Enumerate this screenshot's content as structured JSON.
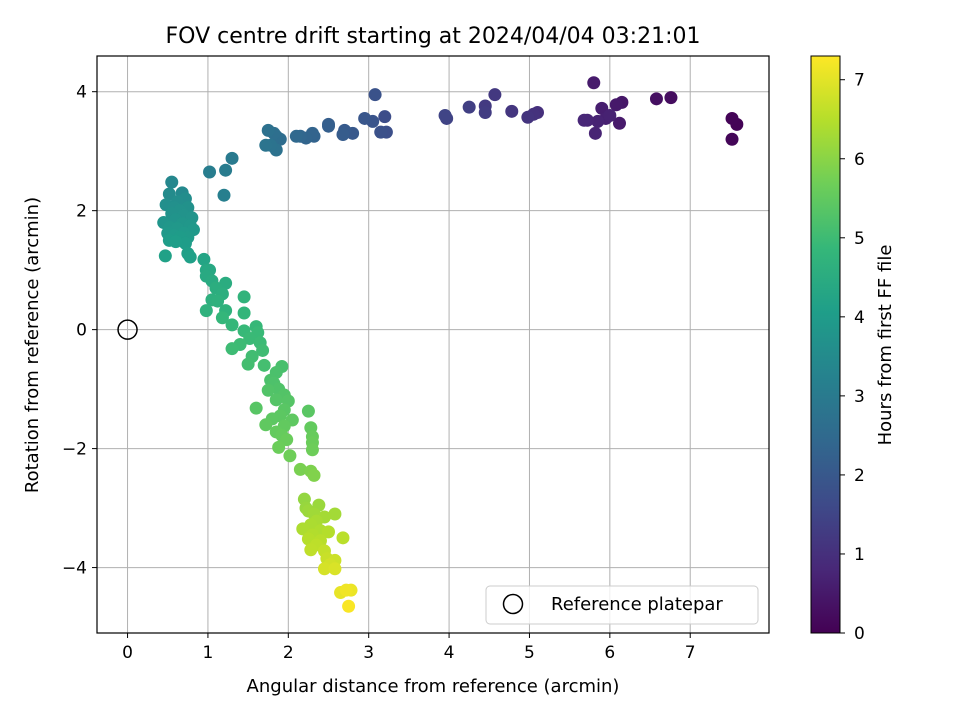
{
  "chart_data": {
    "type": "scatter",
    "title": "FOV centre drift starting at 2024/04/04 03:21:01",
    "xlabel": "Angular distance from reference (arcmin)",
    "ylabel": "Rotation from reference (arcmin)",
    "xlim": [
      -0.38,
      7.98
    ],
    "ylim": [
      -5.1,
      4.6
    ],
    "xticks": [
      0,
      1,
      2,
      3,
      4,
      5,
      6,
      7
    ],
    "yticks": [
      -4,
      -2,
      0,
      2,
      4
    ],
    "xtick_labels": [
      "0",
      "1",
      "2",
      "3",
      "4",
      "5",
      "6",
      "7"
    ],
    "ytick_labels": [
      "−4",
      "−2",
      "0",
      "2",
      "4"
    ],
    "grid": true,
    "colormap": "viridis",
    "colorbar": {
      "label": "Hours from first FF file",
      "range": [
        0,
        7.3
      ],
      "ticks": [
        0,
        1,
        2,
        3,
        4,
        5,
        6,
        7
      ],
      "tick_labels": [
        "0",
        "1",
        "2",
        "3",
        "4",
        "5",
        "6",
        "7"
      ]
    },
    "legend": {
      "label": "Reference platepar",
      "position": "lower-right"
    },
    "reference_point": {
      "x": 0,
      "y": 0,
      "marker": "open-circle"
    },
    "points": [
      {
        "x": 7.58,
        "y": 3.45,
        "t": 0.05
      },
      {
        "x": 7.52,
        "y": 3.55,
        "t": 0.07
      },
      {
        "x": 7.52,
        "y": 3.2,
        "t": 0.1
      },
      {
        "x": 6.76,
        "y": 3.9,
        "t": 0.25
      },
      {
        "x": 6.58,
        "y": 3.88,
        "t": 0.3
      },
      {
        "x": 6.15,
        "y": 3.82,
        "t": 0.45
      },
      {
        "x": 6.08,
        "y": 3.78,
        "t": 0.5
      },
      {
        "x": 6.12,
        "y": 3.47,
        "t": 0.52
      },
      {
        "x": 5.8,
        "y": 4.15,
        "t": 0.55
      },
      {
        "x": 5.9,
        "y": 3.72,
        "t": 0.6
      },
      {
        "x": 5.95,
        "y": 3.55,
        "t": 0.65
      },
      {
        "x": 6.0,
        "y": 3.6,
        "t": 0.68
      },
      {
        "x": 5.85,
        "y": 3.5,
        "t": 0.7
      },
      {
        "x": 5.82,
        "y": 3.3,
        "t": 0.72
      },
      {
        "x": 5.72,
        "y": 3.52,
        "t": 0.75
      },
      {
        "x": 5.68,
        "y": 3.52,
        "t": 0.78
      },
      {
        "x": 5.1,
        "y": 3.65,
        "t": 1.0
      },
      {
        "x": 5.05,
        "y": 3.62,
        "t": 1.05
      },
      {
        "x": 4.98,
        "y": 3.57,
        "t": 1.1
      },
      {
        "x": 4.78,
        "y": 3.67,
        "t": 1.15
      },
      {
        "x": 4.57,
        "y": 3.95,
        "t": 1.2
      },
      {
        "x": 4.45,
        "y": 3.76,
        "t": 1.25
      },
      {
        "x": 4.45,
        "y": 3.65,
        "t": 1.3
      },
      {
        "x": 4.25,
        "y": 3.74,
        "t": 1.35
      },
      {
        "x": 3.97,
        "y": 3.55,
        "t": 1.45
      },
      {
        "x": 3.95,
        "y": 3.6,
        "t": 1.5
      },
      {
        "x": 3.2,
        "y": 3.58,
        "t": 1.7
      },
      {
        "x": 3.22,
        "y": 3.32,
        "t": 1.75
      },
      {
        "x": 3.15,
        "y": 3.32,
        "t": 1.8
      },
      {
        "x": 3.08,
        "y": 3.95,
        "t": 1.85
      },
      {
        "x": 3.05,
        "y": 3.5,
        "t": 1.9
      },
      {
        "x": 2.95,
        "y": 3.55,
        "t": 1.95
      },
      {
        "x": 2.8,
        "y": 3.3,
        "t": 2.0
      },
      {
        "x": 2.7,
        "y": 3.35,
        "t": 2.05
      },
      {
        "x": 2.68,
        "y": 3.28,
        "t": 2.1
      },
      {
        "x": 2.5,
        "y": 3.45,
        "t": 2.15
      },
      {
        "x": 2.5,
        "y": 3.42,
        "t": 2.2
      },
      {
        "x": 2.32,
        "y": 3.25,
        "t": 2.3
      },
      {
        "x": 2.3,
        "y": 3.3,
        "t": 2.32
      },
      {
        "x": 2.22,
        "y": 3.22,
        "t": 2.35
      },
      {
        "x": 2.15,
        "y": 3.25,
        "t": 2.4
      },
      {
        "x": 2.1,
        "y": 3.25,
        "t": 2.45
      },
      {
        "x": 1.9,
        "y": 3.2,
        "t": 2.6
      },
      {
        "x": 1.85,
        "y": 3.25,
        "t": 2.62
      },
      {
        "x": 1.82,
        "y": 3.3,
        "t": 2.65
      },
      {
        "x": 1.75,
        "y": 3.35,
        "t": 2.7
      },
      {
        "x": 1.85,
        "y": 3.02,
        "t": 2.75
      },
      {
        "x": 1.78,
        "y": 3.1,
        "t": 2.78
      },
      {
        "x": 1.72,
        "y": 3.1,
        "t": 2.8
      },
      {
        "x": 1.3,
        "y": 2.88,
        "t": 3.0
      },
      {
        "x": 1.22,
        "y": 2.68,
        "t": 3.05
      },
      {
        "x": 1.02,
        "y": 2.65,
        "t": 3.1
      },
      {
        "x": 1.2,
        "y": 2.26,
        "t": 3.15
      },
      {
        "x": 0.55,
        "y": 2.48,
        "t": 3.4
      },
      {
        "x": 0.68,
        "y": 2.3,
        "t": 3.45
      },
      {
        "x": 0.52,
        "y": 2.28,
        "t": 3.5
      },
      {
        "x": 0.72,
        "y": 2.2,
        "t": 3.55
      },
      {
        "x": 0.62,
        "y": 2.15,
        "t": 3.6
      },
      {
        "x": 0.48,
        "y": 2.1,
        "t": 3.62
      },
      {
        "x": 0.58,
        "y": 2.05,
        "t": 3.65
      },
      {
        "x": 0.75,
        "y": 2.05,
        "t": 3.68
      },
      {
        "x": 0.65,
        "y": 2.0,
        "t": 3.7
      },
      {
        "x": 0.55,
        "y": 1.95,
        "t": 3.72
      },
      {
        "x": 0.7,
        "y": 1.92,
        "t": 3.74
      },
      {
        "x": 0.8,
        "y": 1.88,
        "t": 3.76
      },
      {
        "x": 0.6,
        "y": 1.85,
        "t": 3.78
      },
      {
        "x": 0.45,
        "y": 1.8,
        "t": 3.8
      },
      {
        "x": 0.68,
        "y": 1.78,
        "t": 3.82
      },
      {
        "x": 0.78,
        "y": 1.75,
        "t": 3.84
      },
      {
        "x": 0.52,
        "y": 1.72,
        "t": 3.86
      },
      {
        "x": 0.62,
        "y": 1.7,
        "t": 3.88
      },
      {
        "x": 0.82,
        "y": 1.68,
        "t": 3.9
      },
      {
        "x": 0.5,
        "y": 1.62,
        "t": 3.92
      },
      {
        "x": 0.7,
        "y": 1.62,
        "t": 3.94
      },
      {
        "x": 0.58,
        "y": 1.58,
        "t": 3.96
      },
      {
        "x": 0.75,
        "y": 1.55,
        "t": 3.98
      },
      {
        "x": 0.65,
        "y": 1.55,
        "t": 4.0
      },
      {
        "x": 0.52,
        "y": 1.5,
        "t": 4.02
      },
      {
        "x": 0.72,
        "y": 1.45,
        "t": 4.04
      },
      {
        "x": 0.6,
        "y": 1.48,
        "t": 4.06
      },
      {
        "x": 0.75,
        "y": 1.28,
        "t": 4.1
      },
      {
        "x": 0.78,
        "y": 1.22,
        "t": 4.12
      },
      {
        "x": 0.47,
        "y": 1.24,
        "t": 4.14
      },
      {
        "x": 0.95,
        "y": 1.18,
        "t": 4.25
      },
      {
        "x": 0.98,
        "y": 1.0,
        "t": 4.35
      },
      {
        "x": 1.02,
        "y": 1.0,
        "t": 4.38
      },
      {
        "x": 0.98,
        "y": 0.9,
        "t": 4.42
      },
      {
        "x": 1.05,
        "y": 0.82,
        "t": 4.45
      },
      {
        "x": 1.22,
        "y": 0.78,
        "t": 4.5
      },
      {
        "x": 1.1,
        "y": 0.7,
        "t": 4.55
      },
      {
        "x": 1.18,
        "y": 0.6,
        "t": 4.58
      },
      {
        "x": 1.05,
        "y": 0.5,
        "t": 4.62
      },
      {
        "x": 1.12,
        "y": 0.48,
        "t": 4.65
      },
      {
        "x": 0.98,
        "y": 0.32,
        "t": 4.68
      },
      {
        "x": 1.22,
        "y": 0.32,
        "t": 4.7
      },
      {
        "x": 1.45,
        "y": 0.55,
        "t": 4.75
      },
      {
        "x": 1.45,
        "y": 0.28,
        "t": 4.8
      },
      {
        "x": 1.18,
        "y": 0.2,
        "t": 4.82
      },
      {
        "x": 1.3,
        "y": 0.08,
        "t": 4.85
      },
      {
        "x": 1.6,
        "y": 0.05,
        "t": 4.88
      },
      {
        "x": 1.45,
        "y": -0.02,
        "t": 4.9
      },
      {
        "x": 1.62,
        "y": -0.05,
        "t": 4.92
      },
      {
        "x": 1.52,
        "y": -0.15,
        "t": 4.94
      },
      {
        "x": 1.65,
        "y": -0.22,
        "t": 4.96
      },
      {
        "x": 1.4,
        "y": -0.25,
        "t": 4.98
      },
      {
        "x": 1.3,
        "y": -0.32,
        "t": 5.0
      },
      {
        "x": 1.68,
        "y": -0.35,
        "t": 5.02
      },
      {
        "x": 1.55,
        "y": -0.45,
        "t": 5.05
      },
      {
        "x": 1.5,
        "y": -0.58,
        "t": 5.08
      },
      {
        "x": 1.7,
        "y": -0.6,
        "t": 5.1
      },
      {
        "x": 1.92,
        "y": -0.62,
        "t": 5.15
      },
      {
        "x": 1.85,
        "y": -0.72,
        "t": 5.18
      },
      {
        "x": 1.78,
        "y": -0.85,
        "t": 5.2
      },
      {
        "x": 1.82,
        "y": -0.9,
        "t": 5.22
      },
      {
        "x": 1.88,
        "y": -1.0,
        "t": 5.25
      },
      {
        "x": 1.75,
        "y": -1.02,
        "t": 5.28
      },
      {
        "x": 1.95,
        "y": -1.1,
        "t": 5.3
      },
      {
        "x": 1.85,
        "y": -1.18,
        "t": 5.32
      },
      {
        "x": 2.0,
        "y": -1.2,
        "t": 5.34
      },
      {
        "x": 1.6,
        "y": -1.32,
        "t": 5.36
      },
      {
        "x": 1.95,
        "y": -1.35,
        "t": 5.38
      },
      {
        "x": 2.25,
        "y": -1.37,
        "t": 5.4
      },
      {
        "x": 1.9,
        "y": -1.45,
        "t": 5.42
      },
      {
        "x": 1.8,
        "y": -1.5,
        "t": 5.44
      },
      {
        "x": 2.05,
        "y": -1.52,
        "t": 5.46
      },
      {
        "x": 1.72,
        "y": -1.6,
        "t": 5.48
      },
      {
        "x": 1.95,
        "y": -1.62,
        "t": 5.5
      },
      {
        "x": 2.28,
        "y": -1.65,
        "t": 5.52
      },
      {
        "x": 1.85,
        "y": -1.72,
        "t": 5.54
      },
      {
        "x": 1.92,
        "y": -1.78,
        "t": 5.56
      },
      {
        "x": 2.3,
        "y": -1.8,
        "t": 5.58
      },
      {
        "x": 1.98,
        "y": -1.85,
        "t": 5.6
      },
      {
        "x": 2.3,
        "y": -1.9,
        "t": 5.62
      },
      {
        "x": 1.88,
        "y": -1.98,
        "t": 5.64
      },
      {
        "x": 2.3,
        "y": -2.02,
        "t": 5.66
      },
      {
        "x": 2.02,
        "y": -2.12,
        "t": 5.68
      },
      {
        "x": 2.15,
        "y": -2.35,
        "t": 5.8
      },
      {
        "x": 2.28,
        "y": -2.38,
        "t": 5.85
      },
      {
        "x": 2.32,
        "y": -2.45,
        "t": 5.9
      },
      {
        "x": 2.2,
        "y": -2.85,
        "t": 6.1
      },
      {
        "x": 2.22,
        "y": -3.0,
        "t": 6.15
      },
      {
        "x": 2.38,
        "y": -2.95,
        "t": 6.18
      },
      {
        "x": 2.25,
        "y": -3.05,
        "t": 6.2
      },
      {
        "x": 2.32,
        "y": -3.1,
        "t": 6.25
      },
      {
        "x": 2.58,
        "y": -3.1,
        "t": 6.28
      },
      {
        "x": 2.45,
        "y": -3.15,
        "t": 6.3
      },
      {
        "x": 2.35,
        "y": -3.22,
        "t": 6.35
      },
      {
        "x": 2.28,
        "y": -3.28,
        "t": 6.38
      },
      {
        "x": 2.18,
        "y": -3.35,
        "t": 6.4
      },
      {
        "x": 2.4,
        "y": -3.38,
        "t": 6.42
      },
      {
        "x": 2.3,
        "y": -3.45,
        "t": 6.45
      },
      {
        "x": 2.5,
        "y": -3.4,
        "t": 6.48
      },
      {
        "x": 2.25,
        "y": -3.52,
        "t": 6.5
      },
      {
        "x": 2.4,
        "y": -3.55,
        "t": 6.52
      },
      {
        "x": 2.68,
        "y": -3.5,
        "t": 6.55
      },
      {
        "x": 2.35,
        "y": -3.62,
        "t": 6.58
      },
      {
        "x": 2.28,
        "y": -3.7,
        "t": 6.6
      },
      {
        "x": 2.45,
        "y": -3.72,
        "t": 6.65
      },
      {
        "x": 2.48,
        "y": -3.85,
        "t": 6.7
      },
      {
        "x": 2.58,
        "y": -3.88,
        "t": 6.75
      },
      {
        "x": 2.52,
        "y": -3.95,
        "t": 6.8
      },
      {
        "x": 2.45,
        "y": -4.02,
        "t": 6.85
      },
      {
        "x": 2.58,
        "y": -4.02,
        "t": 6.9
      },
      {
        "x": 2.65,
        "y": -4.42,
        "t": 7.05
      },
      {
        "x": 2.78,
        "y": -4.38,
        "t": 7.1
      },
      {
        "x": 2.72,
        "y": -4.38,
        "t": 7.15
      },
      {
        "x": 2.75,
        "y": -4.65,
        "t": 7.25
      }
    ]
  }
}
